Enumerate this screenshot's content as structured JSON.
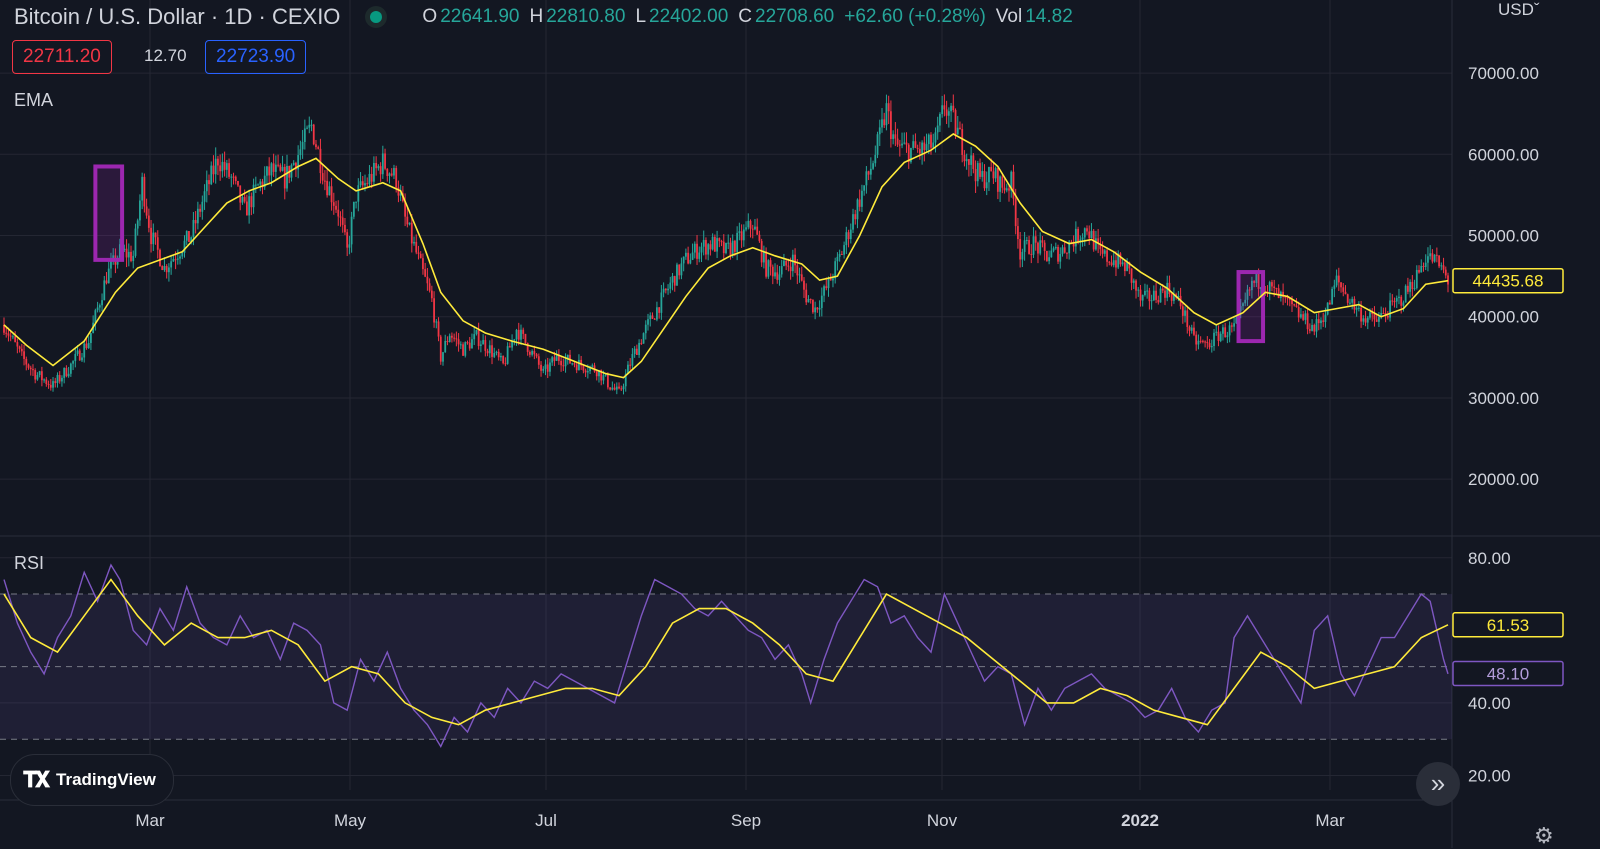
{
  "header": {
    "symbol": "Bitcoin / U.S. Dollar · 1D · CEXIO",
    "o_label": "O",
    "o_value": "22641.90",
    "h_label": "H",
    "h_value": "22810.80",
    "l_label": "L",
    "l_value": "22402.00",
    "c_label": "C",
    "c_value": "22708.60",
    "change": "+62.60 (+0.28%)",
    "vol_label": "Vol",
    "vol_value": "14.82"
  },
  "price_boxes": {
    "bid": "22711.20",
    "spread": "12.70",
    "ask": "22723.90"
  },
  "currency": "USD",
  "brand": "TradingView",
  "colors": {
    "up": "#26a69a",
    "down": "#f23645",
    "ema": "#ffeb3b",
    "rsi": "#7e57c2",
    "highlight": "#9c27b0"
  },
  "icons": {
    "scroll": "double-chevron-right-icon",
    "settings": "gear-icon",
    "logo": "tradingview-logo-icon"
  },
  "chart_data": [
    {
      "type": "candlestick",
      "indicator_label": "EMA",
      "x_tick_labels": [
        "Mar",
        "May",
        "Jul",
        "Sep",
        "Nov",
        "2022",
        "Mar"
      ],
      "y_tick_labels": [
        "70000.00",
        "60000.00",
        "50000.00",
        "40000.00",
        "30000.00",
        "20000.00"
      ],
      "ylim": [
        13000,
        79000
      ],
      "last_value_label": "44435.68",
      "close_series": [
        [
          0,
          39000
        ],
        [
          8,
          35000
        ],
        [
          14,
          33000
        ],
        [
          22,
          31500
        ],
        [
          30,
          34000
        ],
        [
          38,
          37000
        ],
        [
          46,
          45000
        ],
        [
          52,
          48000
        ],
        [
          58,
          47500
        ],
        [
          62,
          56500
        ],
        [
          66,
          50000
        ],
        [
          72,
          46000
        ],
        [
          78,
          48000
        ],
        [
          84,
          50000
        ],
        [
          90,
          55000
        ],
        [
          96,
          59500
        ],
        [
          102,
          57000
        ],
        [
          108,
          53000
        ],
        [
          114,
          56000
        ],
        [
          120,
          58000
        ],
        [
          126,
          57000
        ],
        [
          132,
          60000
        ],
        [
          138,
          63500
        ],
        [
          144,
          57000
        ],
        [
          150,
          53000
        ],
        [
          154,
          48000
        ],
        [
          158,
          55000
        ],
        [
          164,
          57000
        ],
        [
          170,
          59000
        ],
        [
          176,
          57000
        ],
        [
          180,
          52000
        ],
        [
          186,
          47000
        ],
        [
          192,
          42000
        ],
        [
          196,
          35000
        ],
        [
          200,
          38000
        ],
        [
          206,
          36000
        ],
        [
          212,
          37500
        ],
        [
          218,
          36000
        ],
        [
          224,
          34000
        ],
        [
          230,
          38500
        ],
        [
          236,
          36000
        ],
        [
          242,
          33000
        ],
        [
          248,
          35000
        ],
        [
          254,
          34500
        ],
        [
          260,
          34000
        ],
        [
          266,
          33500
        ],
        [
          272,
          31500
        ],
        [
          276,
          30500
        ],
        [
          282,
          35000
        ],
        [
          288,
          38500
        ],
        [
          294,
          41500
        ],
        [
          300,
          44500
        ],
        [
          306,
          47000
        ],
        [
          312,
          48500
        ],
        [
          318,
          49000
        ],
        [
          324,
          48000
        ],
        [
          330,
          49500
        ],
        [
          336,
          51500
        ],
        [
          342,
          46000
        ],
        [
          348,
          45500
        ],
        [
          354,
          47000
        ],
        [
          360,
          42500
        ],
        [
          364,
          41000
        ],
        [
          370,
          44000
        ],
        [
          376,
          48000
        ],
        [
          382,
          53000
        ],
        [
          388,
          57500
        ],
        [
          392,
          61000
        ],
        [
          396,
          65500
        ],
        [
          400,
          61000
        ],
        [
          406,
          60500
        ],
        [
          412,
          60500
        ],
        [
          418,
          61500
        ],
        [
          422,
          66000
        ],
        [
          426,
          64000
        ],
        [
          432,
          60000
        ],
        [
          438,
          57000
        ],
        [
          444,
          57500
        ],
        [
          448,
          56000
        ],
        [
          452,
          56500
        ],
        [
          456,
          48000
        ],
        [
          462,
          49000
        ],
        [
          468,
          47500
        ],
        [
          474,
          48000
        ],
        [
          480,
          49500
        ],
        [
          486,
          51000
        ],
        [
          492,
          47500
        ],
        [
          498,
          47000
        ],
        [
          504,
          46000
        ],
        [
          510,
          42000
        ],
        [
          516,
          42500
        ],
        [
          522,
          43500
        ],
        [
          528,
          41500
        ],
        [
          534,
          37000
        ],
        [
          540,
          36500
        ],
        [
          546,
          38000
        ],
        [
          552,
          38500
        ],
        [
          556,
          41000
        ],
        [
          560,
          44000
        ],
        [
          564,
          44500
        ],
        [
          570,
          43000
        ],
        [
          576,
          41500
        ],
        [
          582,
          40000
        ],
        [
          588,
          38500
        ],
        [
          594,
          41000
        ],
        [
          598,
          44500
        ],
        [
          604,
          42000
        ],
        [
          610,
          40000
        ],
        [
          616,
          39500
        ],
        [
          622,
          41000
        ],
        [
          628,
          42500
        ],
        [
          634,
          45000
        ],
        [
          638,
          47500
        ],
        [
          642,
          47000
        ],
        [
          646,
          45500
        ],
        [
          648,
          44436
        ]
      ],
      "ema_series": [
        [
          0,
          39000
        ],
        [
          10,
          36500
        ],
        [
          22,
          34000
        ],
        [
          36,
          37000
        ],
        [
          50,
          43000
        ],
        [
          60,
          46000
        ],
        [
          70,
          47000
        ],
        [
          80,
          48000
        ],
        [
          90,
          51000
        ],
        [
          100,
          54000
        ],
        [
          110,
          55500
        ],
        [
          120,
          56500
        ],
        [
          132,
          58500
        ],
        [
          140,
          59500
        ],
        [
          150,
          57000
        ],
        [
          158,
          55500
        ],
        [
          170,
          56500
        ],
        [
          178,
          55500
        ],
        [
          188,
          49000
        ],
        [
          196,
          43000
        ],
        [
          206,
          39500
        ],
        [
          216,
          38000
        ],
        [
          228,
          37000
        ],
        [
          242,
          36000
        ],
        [
          256,
          34500
        ],
        [
          270,
          33000
        ],
        [
          278,
          32500
        ],
        [
          286,
          34500
        ],
        [
          296,
          38500
        ],
        [
          306,
          42500
        ],
        [
          316,
          46000
        ],
        [
          326,
          47500
        ],
        [
          336,
          48500
        ],
        [
          346,
          47500
        ],
        [
          358,
          46500
        ],
        [
          366,
          44500
        ],
        [
          374,
          45000
        ],
        [
          384,
          50000
        ],
        [
          394,
          56000
        ],
        [
          404,
          59000
        ],
        [
          416,
          60500
        ],
        [
          426,
          62500
        ],
        [
          436,
          61000
        ],
        [
          446,
          58500
        ],
        [
          456,
          54000
        ],
        [
          466,
          50500
        ],
        [
          478,
          49000
        ],
        [
          488,
          49500
        ],
        [
          498,
          48000
        ],
        [
          510,
          45500
        ],
        [
          522,
          43500
        ],
        [
          534,
          40500
        ],
        [
          544,
          39000
        ],
        [
          556,
          40500
        ],
        [
          566,
          43000
        ],
        [
          576,
          42500
        ],
        [
          588,
          40500
        ],
        [
          598,
          41000
        ],
        [
          608,
          41500
        ],
        [
          618,
          40000
        ],
        [
          628,
          41000
        ],
        [
          638,
          44000
        ],
        [
          648,
          44436
        ]
      ],
      "highlight_boxes": [
        {
          "x_start": 41,
          "x_end": 53,
          "y_low": 47000,
          "y_high": 58500
        },
        {
          "x_start": 554,
          "x_end": 565,
          "y_low": 37000,
          "y_high": 45500
        }
      ]
    },
    {
      "type": "line",
      "indicator_label": "RSI",
      "y_tick_labels": [
        "80.00",
        "40.00",
        "20.00"
      ],
      "ylim": [
        16,
        86
      ],
      "bands": [
        30,
        50,
        70
      ],
      "rsi_last_label": "48.10",
      "ma_last_label": "61.53",
      "rsi_series": [
        [
          0,
          74
        ],
        [
          6,
          62
        ],
        [
          12,
          54
        ],
        [
          18,
          48
        ],
        [
          24,
          58
        ],
        [
          30,
          64
        ],
        [
          36,
          76
        ],
        [
          42,
          68
        ],
        [
          48,
          78
        ],
        [
          52,
          74
        ],
        [
          58,
          60
        ],
        [
          64,
          56
        ],
        [
          70,
          66
        ],
        [
          76,
          60
        ],
        [
          82,
          72
        ],
        [
          88,
          62
        ],
        [
          94,
          58
        ],
        [
          100,
          56
        ],
        [
          106,
          64
        ],
        [
          112,
          58
        ],
        [
          118,
          60
        ],
        [
          124,
          52
        ],
        [
          130,
          62
        ],
        [
          136,
          60
        ],
        [
          142,
          56
        ],
        [
          148,
          40
        ],
        [
          154,
          38
        ],
        [
          160,
          52
        ],
        [
          166,
          46
        ],
        [
          172,
          54
        ],
        [
          178,
          44
        ],
        [
          184,
          38
        ],
        [
          190,
          34
        ],
        [
          196,
          28
        ],
        [
          202,
          36
        ],
        [
          208,
          32
        ],
        [
          214,
          40
        ],
        [
          220,
          36
        ],
        [
          226,
          44
        ],
        [
          232,
          40
        ],
        [
          238,
          46
        ],
        [
          244,
          44
        ],
        [
          250,
          48
        ],
        [
          256,
          46
        ],
        [
          262,
          44
        ],
        [
          268,
          42
        ],
        [
          274,
          40
        ],
        [
          280,
          52
        ],
        [
          286,
          64
        ],
        [
          292,
          74
        ],
        [
          298,
          72
        ],
        [
          304,
          70
        ],
        [
          310,
          66
        ],
        [
          316,
          64
        ],
        [
          322,
          68
        ],
        [
          328,
          64
        ],
        [
          334,
          60
        ],
        [
          340,
          58
        ],
        [
          346,
          52
        ],
        [
          352,
          56
        ],
        [
          358,
          48
        ],
        [
          362,
          40
        ],
        [
          368,
          52
        ],
        [
          374,
          62
        ],
        [
          380,
          68
        ],
        [
          386,
          74
        ],
        [
          392,
          72
        ],
        [
          398,
          62
        ],
        [
          404,
          64
        ],
        [
          410,
          58
        ],
        [
          416,
          54
        ],
        [
          422,
          70
        ],
        [
          428,
          62
        ],
        [
          434,
          54
        ],
        [
          440,
          46
        ],
        [
          446,
          50
        ],
        [
          452,
          48
        ],
        [
          458,
          34
        ],
        [
          464,
          44
        ],
        [
          470,
          38
        ],
        [
          476,
          44
        ],
        [
          482,
          46
        ],
        [
          488,
          48
        ],
        [
          494,
          44
        ],
        [
          500,
          42
        ],
        [
          506,
          40
        ],
        [
          512,
          36
        ],
        [
          518,
          38
        ],
        [
          524,
          44
        ],
        [
          530,
          36
        ],
        [
          536,
          32
        ],
        [
          542,
          38
        ],
        [
          548,
          40
        ],
        [
          552,
          58
        ],
        [
          558,
          64
        ],
        [
          564,
          58
        ],
        [
          570,
          52
        ],
        [
          576,
          46
        ],
        [
          582,
          40
        ],
        [
          588,
          60
        ],
        [
          594,
          64
        ],
        [
          600,
          48
        ],
        [
          606,
          42
        ],
        [
          612,
          50
        ],
        [
          618,
          58
        ],
        [
          624,
          58
        ],
        [
          630,
          64
        ],
        [
          636,
          70
        ],
        [
          640,
          68
        ],
        [
          646,
          52
        ],
        [
          648,
          48
        ]
      ],
      "rsi_ma_series": [
        [
          0,
          70
        ],
        [
          12,
          58
        ],
        [
          24,
          54
        ],
        [
          36,
          64
        ],
        [
          48,
          74
        ],
        [
          60,
          64
        ],
        [
          72,
          56
        ],
        [
          84,
          62
        ],
        [
          96,
          58
        ],
        [
          108,
          58
        ],
        [
          120,
          60
        ],
        [
          132,
          56
        ],
        [
          144,
          46
        ],
        [
          156,
          50
        ],
        [
          168,
          48
        ],
        [
          180,
          40
        ],
        [
          192,
          36
        ],
        [
          204,
          34
        ],
        [
          216,
          38
        ],
        [
          228,
          40
        ],
        [
          240,
          42
        ],
        [
          252,
          44
        ],
        [
          264,
          44
        ],
        [
          276,
          42
        ],
        [
          288,
          50
        ],
        [
          300,
          62
        ],
        [
          312,
          66
        ],
        [
          324,
          66
        ],
        [
          336,
          62
        ],
        [
          348,
          56
        ],
        [
          360,
          48
        ],
        [
          372,
          46
        ],
        [
          384,
          58
        ],
        [
          396,
          70
        ],
        [
          408,
          66
        ],
        [
          420,
          62
        ],
        [
          432,
          58
        ],
        [
          444,
          52
        ],
        [
          456,
          46
        ],
        [
          468,
          40
        ],
        [
          480,
          40
        ],
        [
          492,
          44
        ],
        [
          504,
          42
        ],
        [
          516,
          38
        ],
        [
          528,
          36
        ],
        [
          540,
          34
        ],
        [
          552,
          44
        ],
        [
          564,
          54
        ],
        [
          576,
          50
        ],
        [
          588,
          44
        ],
        [
          600,
          46
        ],
        [
          612,
          48
        ],
        [
          624,
          50
        ],
        [
          636,
          58
        ],
        [
          648,
          61.53
        ]
      ]
    }
  ]
}
